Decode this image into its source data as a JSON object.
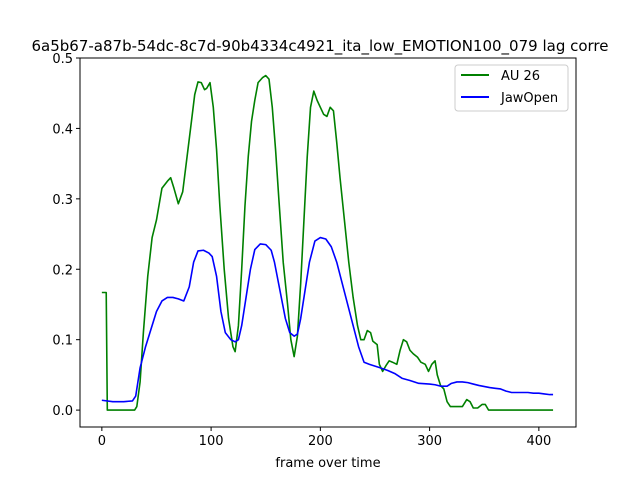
{
  "chart_data": {
    "type": "line",
    "title": "6a5b67-a87b-54dc-8c7d-90b4334c4921_ita_low_EMOTION100_079  lag corre",
    "xlabel": "frame over time",
    "ylabel": "",
    "xlim": [
      -20,
      434
    ],
    "ylim": [
      -0.024,
      0.5
    ],
    "xticks": [
      0,
      100,
      200,
      300,
      400
    ],
    "yticks": [
      0.0,
      0.1,
      0.2,
      0.3,
      0.4,
      0.5
    ],
    "xtick_labels": [
      "0",
      "100",
      "200",
      "300",
      "400"
    ],
    "ytick_labels": [
      "0.0",
      "0.1",
      "0.2",
      "0.3",
      "0.4",
      "0.5"
    ],
    "grid": false,
    "legend_position": "top-right",
    "series": [
      {
        "name": "AU 26",
        "color": "#008000",
        "points": [
          [
            0,
            0.167
          ],
          [
            4,
            0.167
          ],
          [
            5,
            0.0
          ],
          [
            10,
            0.0
          ],
          [
            20,
            0.0
          ],
          [
            30,
            0.0
          ],
          [
            32,
            0.005
          ],
          [
            35,
            0.04
          ],
          [
            38,
            0.11
          ],
          [
            42,
            0.19
          ],
          [
            46,
            0.245
          ],
          [
            50,
            0.27
          ],
          [
            55,
            0.315
          ],
          [
            60,
            0.325
          ],
          [
            63,
            0.33
          ],
          [
            66,
            0.315
          ],
          [
            70,
            0.293
          ],
          [
            74,
            0.31
          ],
          [
            78,
            0.36
          ],
          [
            82,
            0.41
          ],
          [
            85,
            0.448
          ],
          [
            88,
            0.466
          ],
          [
            91,
            0.465
          ],
          [
            94,
            0.455
          ],
          [
            96,
            0.457
          ],
          [
            99,
            0.465
          ],
          [
            102,
            0.43
          ],
          [
            105,
            0.37
          ],
          [
            108,
            0.29
          ],
          [
            112,
            0.2
          ],
          [
            116,
            0.13
          ],
          [
            120,
            0.09
          ],
          [
            122,
            0.083
          ],
          [
            125,
            0.12
          ],
          [
            128,
            0.2
          ],
          [
            131,
            0.29
          ],
          [
            134,
            0.36
          ],
          [
            137,
            0.41
          ],
          [
            140,
            0.44
          ],
          [
            143,
            0.465
          ],
          [
            147,
            0.472
          ],
          [
            150,
            0.475
          ],
          [
            153,
            0.47
          ],
          [
            156,
            0.43
          ],
          [
            159,
            0.37
          ],
          [
            162,
            0.3
          ],
          [
            166,
            0.21
          ],
          [
            170,
            0.15
          ],
          [
            173,
            0.1
          ],
          [
            176,
            0.076
          ],
          [
            179,
            0.105
          ],
          [
            182,
            0.18
          ],
          [
            185,
            0.27
          ],
          [
            188,
            0.36
          ],
          [
            191,
            0.43
          ],
          [
            194,
            0.453
          ],
          [
            197,
            0.44
          ],
          [
            200,
            0.43
          ],
          [
            203,
            0.42
          ],
          [
            206,
            0.417
          ],
          [
            209,
            0.43
          ],
          [
            212,
            0.425
          ],
          [
            215,
            0.38
          ],
          [
            218,
            0.33
          ],
          [
            222,
            0.27
          ],
          [
            226,
            0.21
          ],
          [
            230,
            0.16
          ],
          [
            234,
            0.12
          ],
          [
            237,
            0.1
          ],
          [
            240,
            0.1
          ],
          [
            243,
            0.113
          ],
          [
            246,
            0.11
          ],
          [
            248,
            0.098
          ],
          [
            252,
            0.093
          ],
          [
            254,
            0.065
          ],
          [
            257,
            0.055
          ],
          [
            260,
            0.063
          ],
          [
            263,
            0.07
          ],
          [
            266,
            0.068
          ],
          [
            270,
            0.065
          ],
          [
            273,
            0.085
          ],
          [
            276,
            0.1
          ],
          [
            279,
            0.097
          ],
          [
            282,
            0.085
          ],
          [
            285,
            0.08
          ],
          [
            289,
            0.075
          ],
          [
            292,
            0.068
          ],
          [
            296,
            0.065
          ],
          [
            299,
            0.055
          ],
          [
            302,
            0.065
          ],
          [
            305,
            0.07
          ],
          [
            307,
            0.05
          ],
          [
            310,
            0.035
          ],
          [
            313,
            0.03
          ],
          [
            316,
            0.012
          ],
          [
            319,
            0.005
          ],
          [
            322,
            0.005
          ],
          [
            326,
            0.005
          ],
          [
            330,
            0.005
          ],
          [
            334,
            0.015
          ],
          [
            337,
            0.012
          ],
          [
            340,
            0.003
          ],
          [
            344,
            0.003
          ],
          [
            348,
            0.008
          ],
          [
            351,
            0.008
          ],
          [
            354,
            0.0
          ],
          [
            360,
            0.0
          ],
          [
            380,
            0.0
          ],
          [
            400,
            0.0
          ],
          [
            413,
            0.0
          ]
        ]
      },
      {
        "name": "JawOpen",
        "color": "#0000ff",
        "points": [
          [
            0,
            0.014
          ],
          [
            10,
            0.012
          ],
          [
            20,
            0.012
          ],
          [
            28,
            0.013
          ],
          [
            31,
            0.02
          ],
          [
            35,
            0.06
          ],
          [
            40,
            0.09
          ],
          [
            45,
            0.115
          ],
          [
            50,
            0.14
          ],
          [
            55,
            0.155
          ],
          [
            60,
            0.16
          ],
          [
            65,
            0.16
          ],
          [
            70,
            0.158
          ],
          [
            75,
            0.155
          ],
          [
            80,
            0.175
          ],
          [
            84,
            0.21
          ],
          [
            88,
            0.226
          ],
          [
            93,
            0.227
          ],
          [
            98,
            0.223
          ],
          [
            101,
            0.218
          ],
          [
            105,
            0.19
          ],
          [
            109,
            0.14
          ],
          [
            113,
            0.11
          ],
          [
            118,
            0.1
          ],
          [
            122,
            0.097
          ],
          [
            125,
            0.1
          ],
          [
            128,
            0.12
          ],
          [
            132,
            0.16
          ],
          [
            136,
            0.2
          ],
          [
            140,
            0.228
          ],
          [
            145,
            0.236
          ],
          [
            150,
            0.235
          ],
          [
            155,
            0.227
          ],
          [
            158,
            0.21
          ],
          [
            163,
            0.17
          ],
          [
            168,
            0.13
          ],
          [
            172,
            0.11
          ],
          [
            176,
            0.105
          ],
          [
            179,
            0.108
          ],
          [
            182,
            0.13
          ],
          [
            186,
            0.17
          ],
          [
            190,
            0.21
          ],
          [
            195,
            0.24
          ],
          [
            200,
            0.245
          ],
          [
            205,
            0.243
          ],
          [
            210,
            0.232
          ],
          [
            215,
            0.21
          ],
          [
            220,
            0.18
          ],
          [
            225,
            0.15
          ],
          [
            230,
            0.12
          ],
          [
            235,
            0.09
          ],
          [
            240,
            0.068
          ],
          [
            245,
            0.065
          ],
          [
            255,
            0.06
          ],
          [
            262,
            0.056
          ],
          [
            268,
            0.052
          ],
          [
            275,
            0.045
          ],
          [
            282,
            0.042
          ],
          [
            290,
            0.038
          ],
          [
            300,
            0.037
          ],
          [
            305,
            0.036
          ],
          [
            310,
            0.034
          ],
          [
            316,
            0.034
          ],
          [
            320,
            0.038
          ],
          [
            325,
            0.04
          ],
          [
            330,
            0.04
          ],
          [
            335,
            0.039
          ],
          [
            340,
            0.037
          ],
          [
            345,
            0.035
          ],
          [
            355,
            0.032
          ],
          [
            360,
            0.031
          ],
          [
            365,
            0.03
          ],
          [
            370,
            0.027
          ],
          [
            375,
            0.025
          ],
          [
            380,
            0.025
          ],
          [
            390,
            0.025
          ],
          [
            395,
            0.024
          ],
          [
            400,
            0.024
          ],
          [
            405,
            0.023
          ],
          [
            410,
            0.022
          ],
          [
            413,
            0.022
          ]
        ]
      }
    ]
  }
}
